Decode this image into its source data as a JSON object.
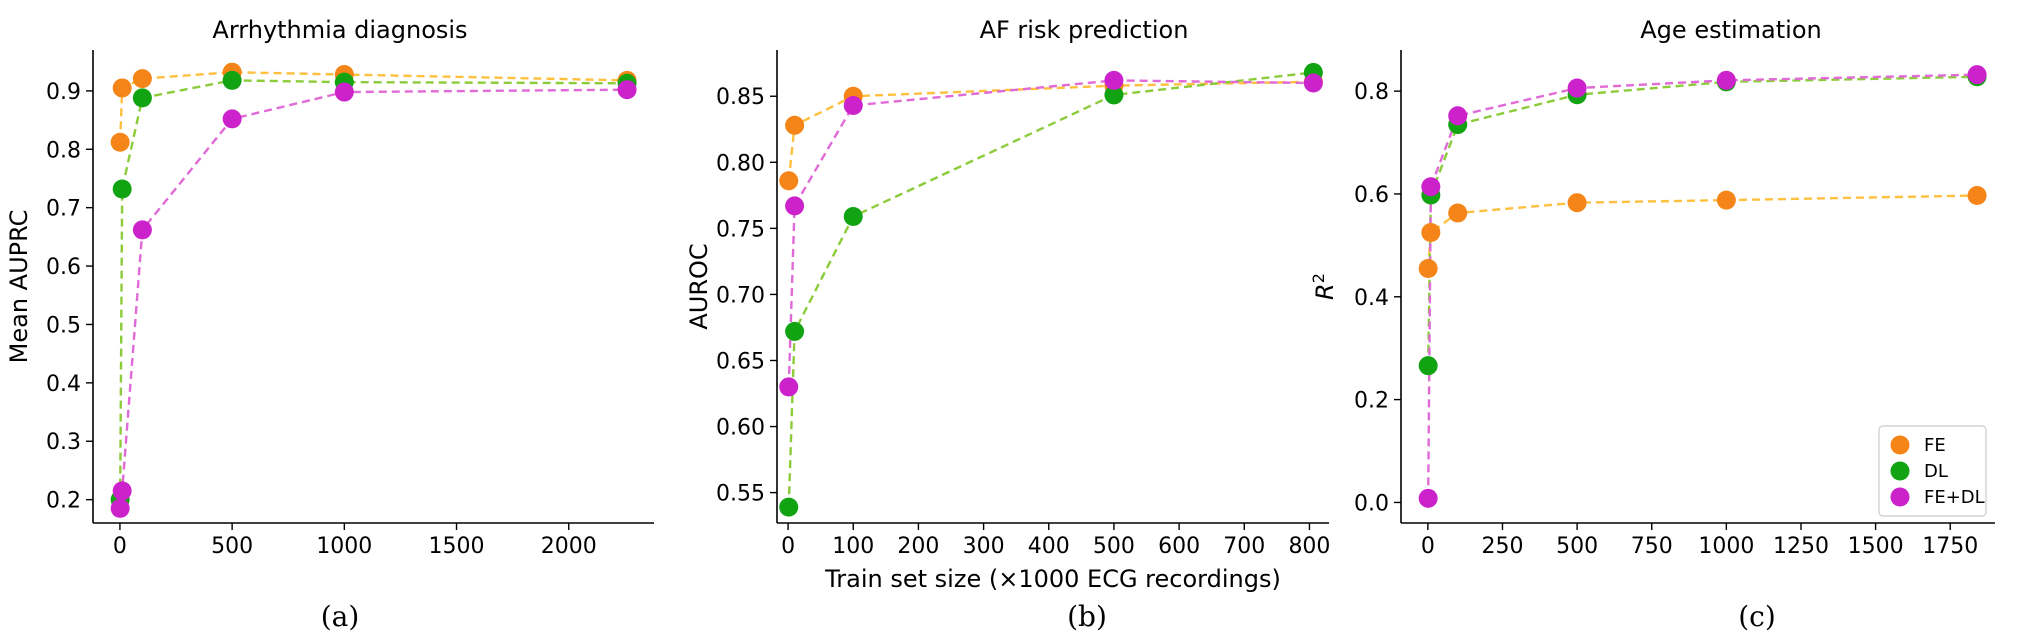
{
  "colors": {
    "FE": "#f58518",
    "DL": "#12a312",
    "FE+DL": "#cc22cc",
    "FE_line": "#ffbf3f",
    "DL_line": "#8ccb3a",
    "FE+DL_line": "#e06ad6"
  },
  "legend": {
    "items": [
      "FE",
      "DL",
      "FE+DL"
    ],
    "placement": "lower-right of panel (c)"
  },
  "shared_xlabel": "Train set size (×1000 ECG recordings)",
  "chart_data": [
    {
      "type": "line",
      "title": "Arrhythmia diagnosis",
      "caption": "(a)",
      "xlabel": "",
      "ylabel": "Mean AUPRC",
      "xlim": [
        -120,
        2380
      ],
      "ylim": [
        0.16,
        0.97
      ],
      "xticks": [
        0,
        500,
        1000,
        1500,
        2000
      ],
      "xtick_labels": [
        "0",
        "500",
        "1000",
        "1500",
        "2000"
      ],
      "yticks": [
        0.2,
        0.3,
        0.4,
        0.5,
        0.6,
        0.7,
        0.8,
        0.9
      ],
      "ytick_labels": [
        "0.2",
        "0.3",
        "0.4",
        "0.5",
        "0.6",
        "0.7",
        "0.8",
        "0.9"
      ],
      "grid": false,
      "series": [
        {
          "name": "FE",
          "x": [
            1,
            10,
            100,
            500,
            1000,
            2260
          ],
          "y": [
            0.812,
            0.905,
            0.921,
            0.932,
            0.928,
            0.918
          ]
        },
        {
          "name": "DL",
          "x": [
            1,
            10,
            100,
            500,
            1000,
            2260
          ],
          "y": [
            0.2,
            0.732,
            0.888,
            0.918,
            0.915,
            0.913
          ]
        },
        {
          "name": "FE+DL",
          "x": [
            1,
            10,
            100,
            500,
            1000,
            2260
          ],
          "y": [
            0.185,
            0.215,
            0.662,
            0.852,
            0.898,
            0.902
          ]
        }
      ]
    },
    {
      "type": "line",
      "title": "AF risk prediction",
      "caption": "(b)",
      "xlabel": "Train set size (×1000 ECG recordings)",
      "ylabel": "AUROC",
      "xlim": [
        -17,
        830
      ],
      "ylim": [
        0.527,
        0.885
      ],
      "xticks": [
        0,
        100,
        200,
        300,
        400,
        500,
        600,
        700,
        800
      ],
      "xtick_labels": [
        "0",
        "100",
        "200",
        "300",
        "400",
        "500",
        "600",
        "700",
        "800"
      ],
      "yticks": [
        0.55,
        0.6,
        0.65,
        0.7,
        0.75,
        0.8,
        0.85
      ],
      "ytick_labels": [
        "0.55",
        "0.60",
        "0.65",
        "0.70",
        "0.75",
        "0.80",
        "0.85"
      ],
      "grid": false,
      "series": [
        {
          "name": "FE",
          "x": [
            1,
            10,
            100,
            500,
            806
          ],
          "y": [
            0.786,
            0.828,
            0.85,
            0.858,
            0.861
          ]
        },
        {
          "name": "DL",
          "x": [
            1,
            10,
            100,
            500,
            806
          ],
          "y": [
            0.539,
            0.672,
            0.759,
            0.851,
            0.868
          ]
        },
        {
          "name": "FE+DL",
          "x": [
            1,
            10,
            100,
            500,
            806
          ],
          "y": [
            0.63,
            0.767,
            0.843,
            0.862,
            0.86
          ]
        }
      ]
    },
    {
      "type": "line",
      "title": "Age estimation",
      "caption": "(c)",
      "xlabel": "",
      "ylabel": "R²",
      "xlim": [
        -90,
        1900
      ],
      "ylim": [
        -0.04,
        0.88
      ],
      "xticks": [
        0,
        250,
        500,
        750,
        1000,
        1250,
        1500,
        1750
      ],
      "xtick_labels": [
        "0",
        "250",
        "500",
        "750",
        "1000",
        "1250",
        "1500",
        "1750"
      ],
      "yticks": [
        0.0,
        0.2,
        0.4,
        0.6,
        0.8
      ],
      "ytick_labels": [
        "0.0",
        "0.2",
        "0.4",
        "0.6",
        "0.8"
      ],
      "grid": false,
      "series": [
        {
          "name": "FE",
          "x": [
            1,
            10,
            100,
            500,
            1000,
            1840
          ],
          "y": [
            0.455,
            0.525,
            0.563,
            0.583,
            0.588,
            0.597
          ]
        },
        {
          "name": "DL",
          "x": [
            1,
            10,
            100,
            500,
            1000,
            1840
          ],
          "y": [
            0.266,
            0.598,
            0.735,
            0.793,
            0.818,
            0.828
          ]
        },
        {
          "name": "FE+DL",
          "x": [
            1,
            10,
            100,
            500,
            1000,
            1840
          ],
          "y": [
            0.008,
            0.614,
            0.752,
            0.806,
            0.821,
            0.832
          ]
        }
      ]
    }
  ]
}
